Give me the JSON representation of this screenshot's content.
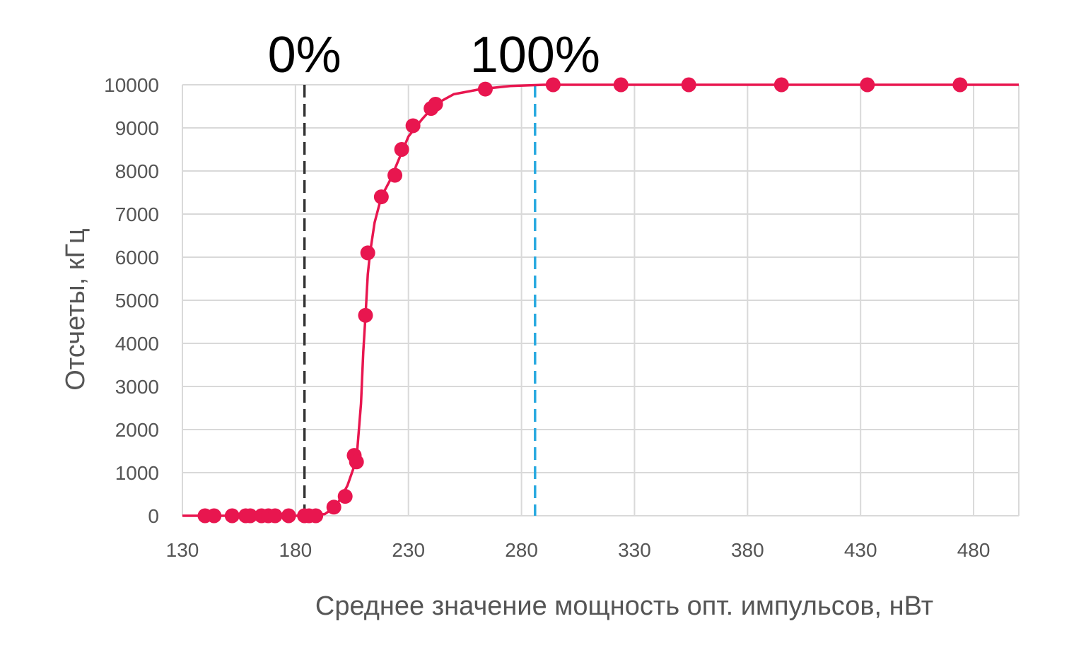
{
  "chart_data": {
    "type": "scatter",
    "title": "",
    "xlabel": "Среднее значение мощность опт. импульсов, нВт",
    "ylabel": "Отсчеты, кГц",
    "xlim": [
      130,
      500
    ],
    "ylim": [
      0,
      10000
    ],
    "x_ticks": [
      130,
      180,
      230,
      280,
      330,
      380,
      430,
      480
    ],
    "y_ticks": [
      0,
      1000,
      2000,
      3000,
      4000,
      5000,
      6000,
      7000,
      8000,
      9000,
      10000
    ],
    "grid": true,
    "legend": "none",
    "series": [
      {
        "color": "#E8164F",
        "points": [
          [
            140,
            0
          ],
          [
            144,
            0
          ],
          [
            152,
            0
          ],
          [
            158,
            0
          ],
          [
            160,
            0
          ],
          [
            165,
            0
          ],
          [
            168,
            0
          ],
          [
            171,
            0
          ],
          [
            177,
            0
          ],
          [
            184,
            0
          ],
          [
            186,
            0
          ],
          [
            189,
            0
          ],
          [
            197,
            200
          ],
          [
            202,
            450
          ],
          [
            206,
            1400
          ],
          [
            207,
            1250
          ],
          [
            211,
            4650
          ],
          [
            212,
            6100
          ],
          [
            218,
            7400
          ],
          [
            224,
            7900
          ],
          [
            227,
            8500
          ],
          [
            232,
            9050
          ],
          [
            240,
            9450
          ],
          [
            242,
            9550
          ],
          [
            264,
            9900
          ],
          [
            294,
            10000
          ],
          [
            324,
            10000
          ],
          [
            354,
            10000
          ],
          [
            395,
            10000
          ],
          [
            433,
            10000
          ],
          [
            474,
            10000
          ]
        ],
        "curve": [
          [
            130,
            0
          ],
          [
            185,
            0
          ],
          [
            193,
            40
          ],
          [
            198,
            220
          ],
          [
            203,
            700
          ],
          [
            207,
            1300
          ],
          [
            209,
            2600
          ],
          [
            210,
            3800
          ],
          [
            211,
            4650
          ],
          [
            212,
            5600
          ],
          [
            213,
            6100
          ],
          [
            215,
            6800
          ],
          [
            218,
            7400
          ],
          [
            222,
            7800
          ],
          [
            226,
            8300
          ],
          [
            230,
            8800
          ],
          [
            236,
            9200
          ],
          [
            242,
            9550
          ],
          [
            250,
            9780
          ],
          [
            262,
            9900
          ],
          [
            275,
            9970
          ],
          [
            290,
            10000
          ],
          [
            500,
            10000
          ]
        ]
      }
    ],
    "reference_lines": [
      {
        "x": 184,
        "label": "0%",
        "color": "#333333"
      },
      {
        "x": 286,
        "label": "100%",
        "color": "#29A9E0"
      }
    ]
  }
}
